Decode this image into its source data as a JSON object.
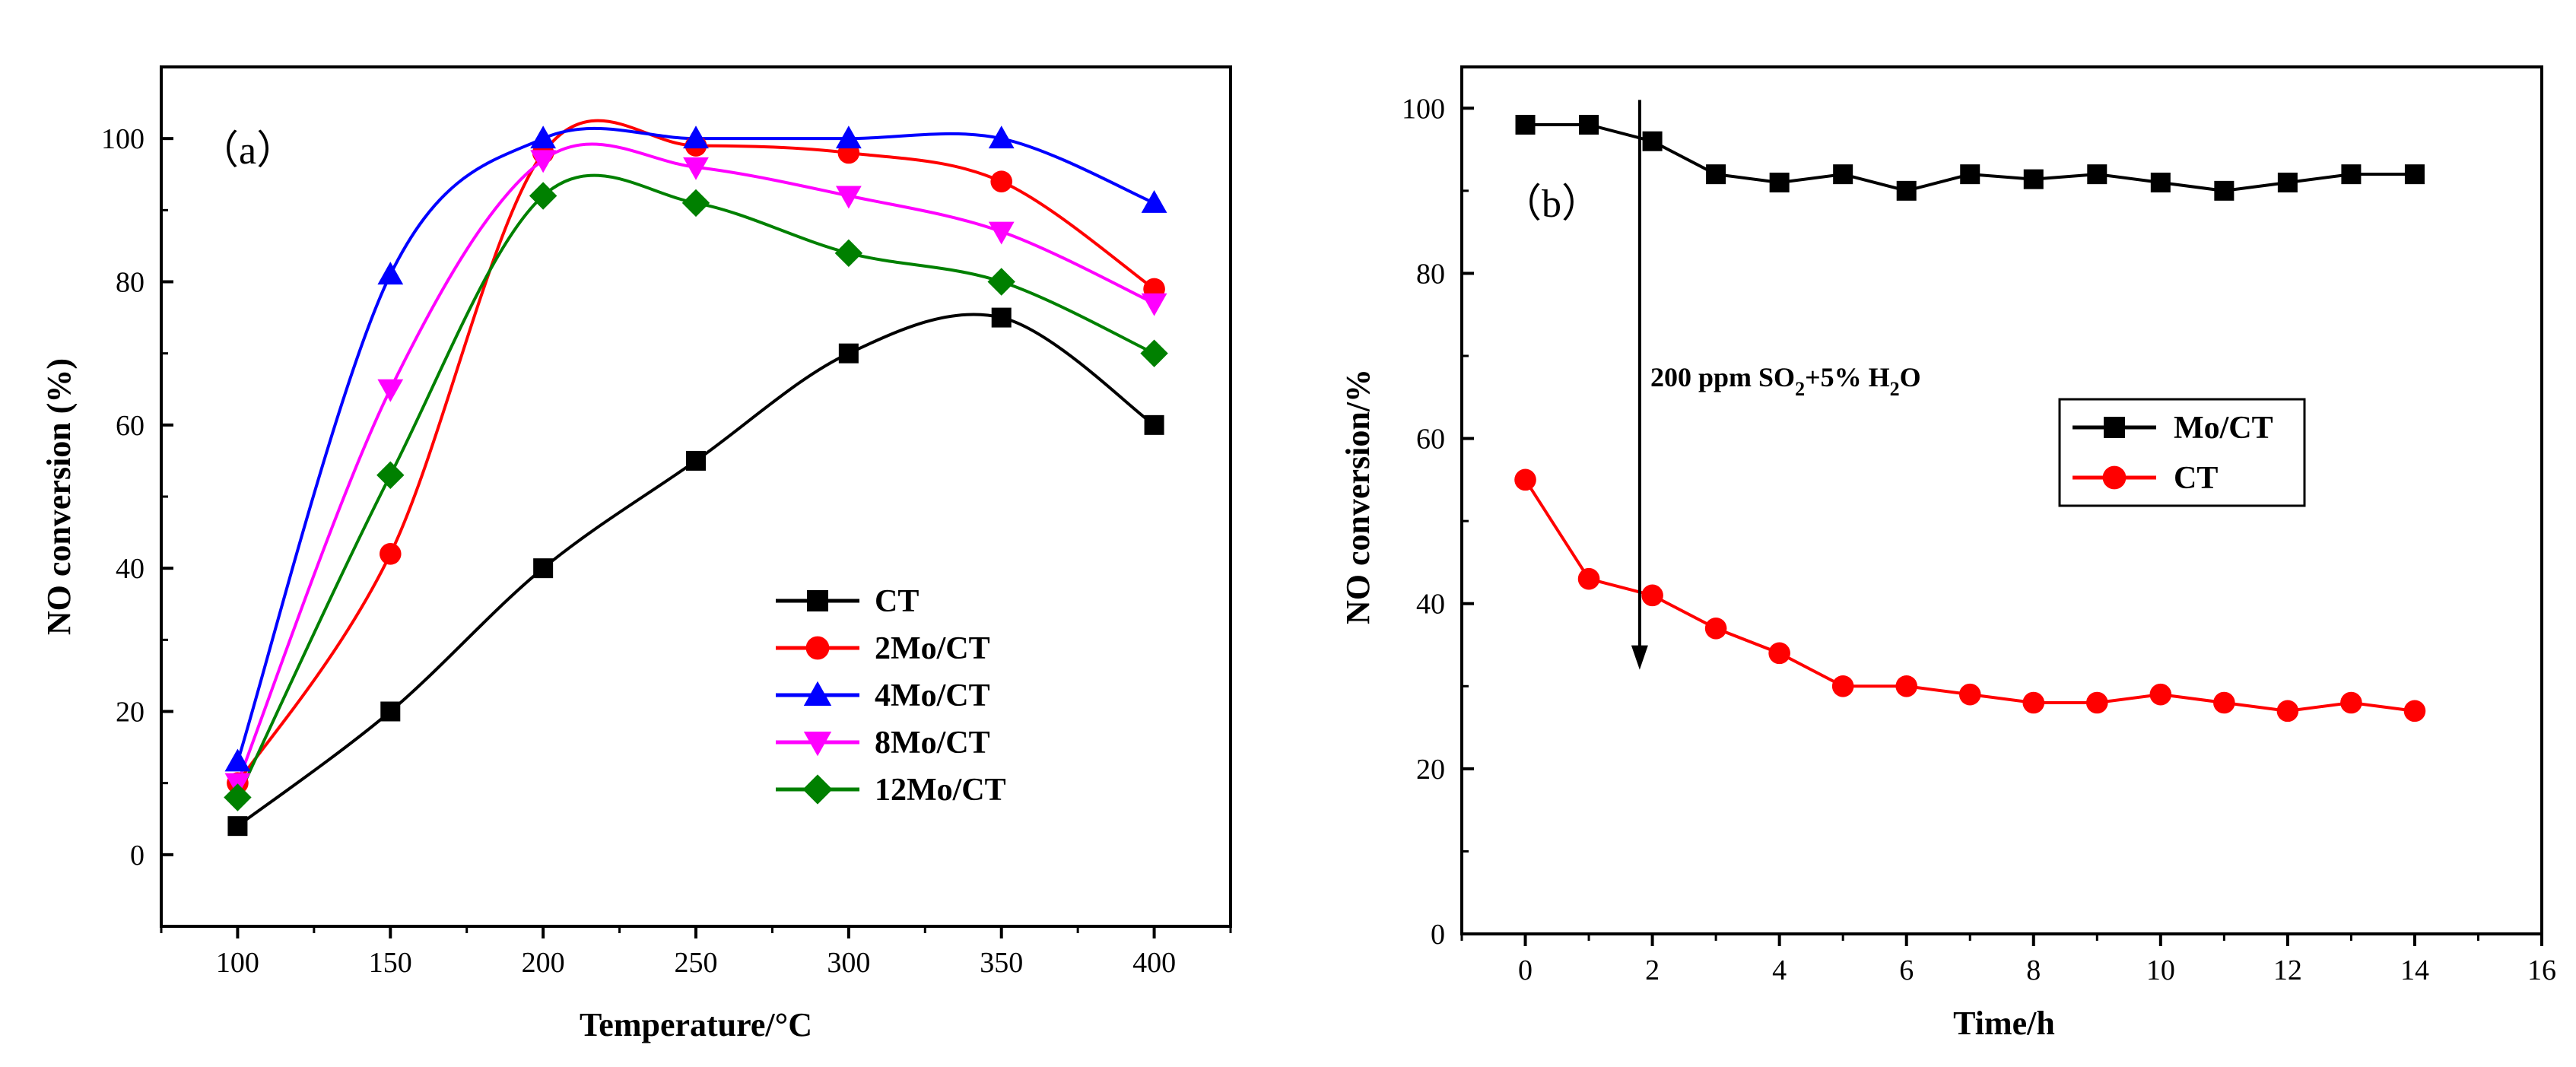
{
  "chart_data": [
    {
      "type": "scatter",
      "panel_label": "（a）",
      "xlabel": "Temperature/°C",
      "ylabel": "NO conversion (%)",
      "xlim": [
        75,
        425
      ],
      "ylim": [
        -10,
        110
      ],
      "xticks": [
        100,
        150,
        200,
        250,
        300,
        350,
        400
      ],
      "yticks": [
        0,
        20,
        40,
        60,
        80,
        100
      ],
      "fitted_curves": true,
      "legend_position": "bottom-right",
      "x": [
        100,
        150,
        200,
        250,
        300,
        350,
        400
      ],
      "series": [
        {
          "name": "CT",
          "color": "#000000",
          "marker": "square",
          "values": [
            4,
            20,
            40,
            55,
            70,
            75,
            60
          ]
        },
        {
          "name": "2Mo/CT",
          "color": "#ff0000",
          "marker": "circle",
          "values": [
            10,
            42,
            98,
            99,
            98,
            94,
            79
          ]
        },
        {
          "name": "4Mo/CT",
          "color": "#0000ff",
          "marker": "triangle-up",
          "values": [
            13,
            81,
            100,
            100,
            100,
            100,
            91
          ]
        },
        {
          "name": "8Mo/CT",
          "color": "#ff00ff",
          "marker": "triangle-down",
          "values": [
            10,
            65,
            97,
            96,
            92,
            87,
            77
          ]
        },
        {
          "name": "12Mo/CT",
          "color": "#008000",
          "marker": "diamond",
          "values": [
            8,
            53,
            92,
            91,
            84,
            80,
            70
          ]
        }
      ]
    },
    {
      "type": "line",
      "panel_label": "（b）",
      "xlabel": "Time/h",
      "ylabel": "NO conversion/%",
      "xlim": [
        -1,
        16
      ],
      "ylim": [
        0,
        105
      ],
      "xticks": [
        0,
        2,
        4,
        6,
        8,
        10,
        12,
        14,
        16
      ],
      "yticks": [
        0,
        20,
        40,
        60,
        80,
        100
      ],
      "legend_position": "center-right",
      "annotation": {
        "text_main": "200 ppm SO",
        "sub1": "2",
        "text_mid": "+5% H",
        "sub2": "2",
        "text_end": "O",
        "arrow_x": 1.8,
        "arrow_from": 101,
        "arrow_to": 32
      },
      "x": [
        0,
        1,
        2,
        3,
        4,
        5,
        6,
        7,
        8,
        9,
        10,
        11,
        12,
        13,
        14
      ],
      "series": [
        {
          "name": "Mo/CT",
          "color": "#000000",
          "marker": "square",
          "values": [
            98,
            98,
            96,
            92,
            91,
            92,
            90,
            92,
            91.4,
            92,
            91,
            90,
            91,
            92,
            92
          ]
        },
        {
          "name": "CT",
          "color": "#ff0000",
          "marker": "circle",
          "values": [
            55,
            43,
            41,
            37,
            34,
            30,
            30,
            29,
            28,
            28,
            29,
            28,
            27,
            28,
            27
          ]
        }
      ]
    }
  ]
}
